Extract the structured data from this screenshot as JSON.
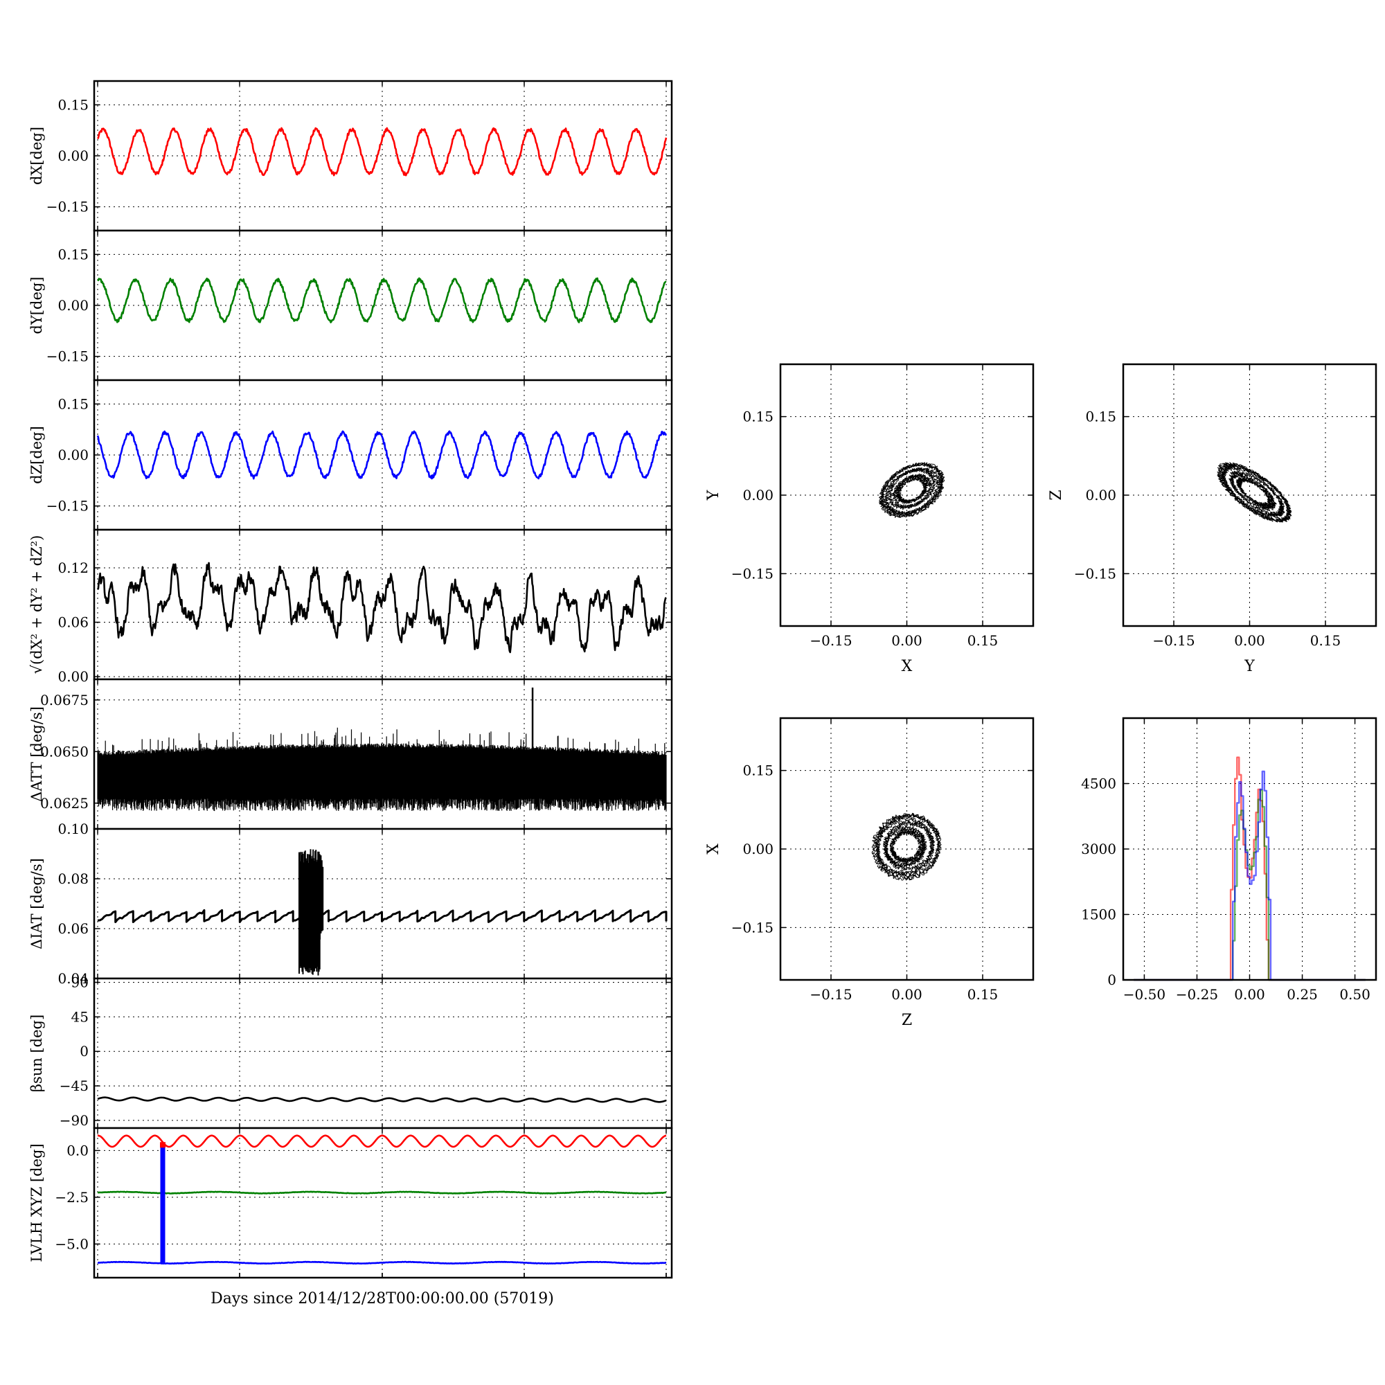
{
  "figure": {
    "xlabel_main": "Days since 2014/12/28T00:00:00.00 (57019)"
  },
  "chart_data": [
    {
      "type": "line",
      "ylabel": "dX[deg]",
      "yticks": [
        "0.15",
        "0.00",
        "−0.15"
      ],
      "ylim": [
        -0.22,
        0.22
      ],
      "cycles": 16,
      "amplitude": 0.065,
      "offset": 0.012,
      "noise": 0.005,
      "series": [
        {
          "values_description": "sinusoid ~16 cycles",
          "color": "#ff0000"
        }
      ],
      "grid": true
    },
    {
      "type": "line",
      "ylabel": "dY[deg]",
      "yticks": [
        "0.15",
        "0.00",
        "−0.15"
      ],
      "ylim": [
        -0.22,
        0.22
      ],
      "cycles": 16,
      "amplitude": 0.06,
      "offset": 0.015,
      "noise": 0.005,
      "series": [
        {
          "color": "#008000"
        }
      ],
      "grid": true
    },
    {
      "type": "line",
      "ylabel": "dZ[deg]",
      "yticks": [
        "0.15",
        "0.00",
        "−0.15"
      ],
      "ylim": [
        -0.22,
        0.22
      ],
      "cycles": 16,
      "amplitude": 0.065,
      "offset": 0.0,
      "noise": 0.005,
      "series": [
        {
          "color": "#0000ff"
        }
      ],
      "grid": true
    },
    {
      "type": "line",
      "ylabel": "√(dX² + dY² + dZ²)",
      "yticks": [
        "0.12",
        "0.06",
        "0.00"
      ],
      "ylim": [
        -0.003,
        0.162
      ],
      "cycles": 16,
      "amplitude": 0.025,
      "offset": 0.078,
      "noise": 0.008,
      "series": [
        {
          "color": "#000000"
        }
      ],
      "grid": true
    },
    {
      "type": "line",
      "ylabel": "ΔATT [deg/s]",
      "yticks": [
        "0.0675",
        "0.0650",
        "0.0625"
      ],
      "ylim": [
        0.06125,
        0.0685
      ],
      "band_low": 0.0623,
      "band_high": 0.0649,
      "spike_value": 0.0681,
      "series": [
        {
          "color": "#000000"
        }
      ],
      "grid": true
    },
    {
      "type": "line",
      "ylabel": "ΔIAT [deg/s]",
      "yticks": [
        "0.10",
        "0.08",
        "0.06",
        "0.04"
      ],
      "ylim": [
        0.04,
        0.1
      ],
      "sawtooth_low": 0.063,
      "sawtooth_high": 0.067,
      "sawtooth_cycles": 32,
      "burst_low": 0.041,
      "burst_high": 0.092,
      "series": [
        {
          "color": "#000000"
        }
      ],
      "grid": true
    },
    {
      "type": "line",
      "ylabel": "βsun [deg]",
      "yticks": [
        "90",
        "45",
        "0",
        "−45",
        "−90"
      ],
      "ylim": [
        -100,
        95
      ],
      "base": -62,
      "wobble": 2,
      "series": [
        {
          "color": "#000000"
        }
      ],
      "grid": true
    },
    {
      "type": "line",
      "ylabel": "LVLH XYZ [deg]",
      "yticks": [
        "0.0",
        "−2.5",
        "−5.0"
      ],
      "ylim": [
        -6.8,
        1.2
      ],
      "series": [
        {
          "color": "#ff0000",
          "base": 0.5,
          "amplitude": 0.3,
          "cycles": 20
        },
        {
          "color": "#008000",
          "base": -2.25,
          "amplitude": 0.04
        },
        {
          "color": "#0000ff",
          "base": -6.0,
          "amplitude": 0.04
        }
      ],
      "grid": true
    },
    {
      "type": "scatter",
      "xlabel": "X",
      "ylabel": "Y",
      "xticks": [
        "−0.15",
        "0.00",
        "0.15"
      ],
      "yticks": [
        "0.15",
        "0.00",
        "−0.15"
      ],
      "xlim": [
        -0.25,
        0.25
      ],
      "ylim": [
        -0.25,
        0.25
      ],
      "ring_center": [
        0.01,
        0.01
      ],
      "ring_rx": 0.06,
      "ring_ry": 0.04,
      "tilt_deg": 30,
      "grid": true
    },
    {
      "type": "scatter",
      "xlabel": "Y",
      "ylabel": "Z",
      "xticks": [
        "−0.15",
        "0.00",
        "0.15"
      ],
      "yticks": [
        "0.15",
        "0.00",
        "−0.15"
      ],
      "xlim": [
        -0.25,
        0.25
      ],
      "ylim": [
        -0.25,
        0.25
      ],
      "ring_center": [
        0.01,
        0.005
      ],
      "ring_rx": 0.075,
      "ring_ry": 0.03,
      "tilt_deg": -35,
      "grid": true
    },
    {
      "type": "scatter",
      "xlabel": "Z",
      "ylabel": "X",
      "xticks": [
        "−0.15",
        "0.00",
        "0.15"
      ],
      "yticks": [
        "0.15",
        "0.00",
        "−0.15"
      ],
      "xlim": [
        -0.25,
        0.25
      ],
      "ylim": [
        -0.25,
        0.25
      ],
      "ring_center": [
        0.0,
        0.005
      ],
      "ring_rx": 0.06,
      "ring_ry": 0.055,
      "tilt_deg": 20,
      "grid": true
    },
    {
      "type": "histogram",
      "xticks": [
        "−0.50",
        "−0.25",
        "0.00",
        "0.25",
        "0.50"
      ],
      "yticks": [
        "4500",
        "3000",
        "1500",
        "0"
      ],
      "xlim": [
        -0.6,
        0.6
      ],
      "ylim": [
        0,
        6000
      ],
      "series": [
        {
          "color": "#ff0000",
          "peaks": [
            [
              -0.055,
              5200
            ],
            [
              0.04,
              4400
            ]
          ],
          "dip": 2300
        },
        {
          "color": "#008000",
          "peaks": [
            [
              -0.04,
              4000
            ],
            [
              0.045,
              4500
            ]
          ],
          "dip": 2500
        },
        {
          "color": "#0000ff",
          "peaks": [
            [
              -0.045,
              4700
            ],
            [
              0.055,
              4900
            ]
          ],
          "dip": 2200
        }
      ],
      "grid": true
    }
  ]
}
